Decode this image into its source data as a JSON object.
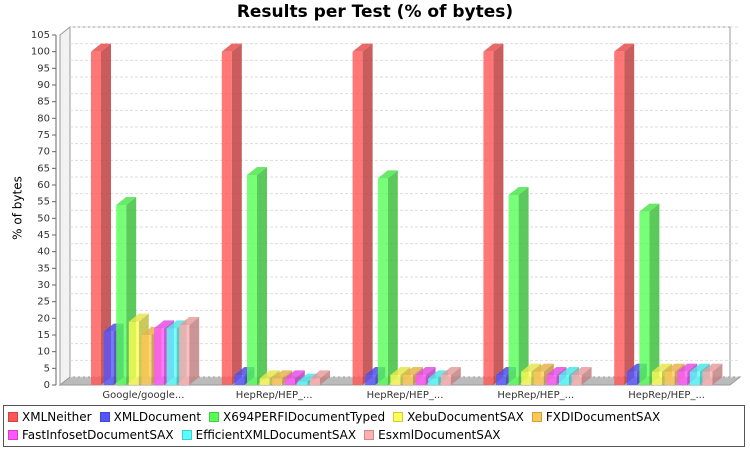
{
  "chart_data": {
    "type": "bar3d",
    "title": "Results per Test (% of bytes)",
    "y_label": "% of bytes",
    "categories": [
      "Google/google...",
      "HepRep/HEP_...",
      "HepRep/HEP_...",
      "HepRep/HEP_...",
      "HepRep/HEP_..."
    ],
    "series": [
      {
        "name": "XMLNeither",
        "color": "#ff5555",
        "values": [
          100,
          100,
          100,
          100,
          100
        ]
      },
      {
        "name": "XMLDocument",
        "color": "#5555ff",
        "values": [
          16,
          3,
          3,
          3,
          4
        ]
      },
      {
        "name": "X694PERFIDocumentTyped",
        "color": "#55ff55",
        "values": [
          54,
          63,
          62,
          57,
          52
        ]
      },
      {
        "name": "XebuDocumentSAX",
        "color": "#ffff55",
        "values": [
          19,
          2,
          3,
          4,
          4
        ]
      },
      {
        "name": "FXDIDocumentSAX",
        "color": "#ffc855",
        "values": [
          15,
          2,
          3,
          4,
          4
        ]
      },
      {
        "name": "FastInfosetDocumentSAX",
        "color": "#ff55ff",
        "values": [
          17,
          2,
          3,
          3,
          4
        ]
      },
      {
        "name": "EfficientXMLDocumentSAX",
        "color": "#55ffff",
        "values": [
          17,
          1,
          2,
          3,
          4
        ]
      },
      {
        "name": "EsxmlDocumentSAX",
        "color": "#ffafaf",
        "values": [
          18,
          2,
          3,
          3,
          4
        ]
      }
    ],
    "ylim": [
      0,
      105
    ],
    "yticks": [
      0,
      5,
      10,
      15,
      20,
      25,
      30,
      35,
      40,
      45,
      50,
      55,
      60,
      65,
      70,
      75,
      80,
      85,
      90,
      95,
      100,
      105
    ],
    "grid": true
  }
}
